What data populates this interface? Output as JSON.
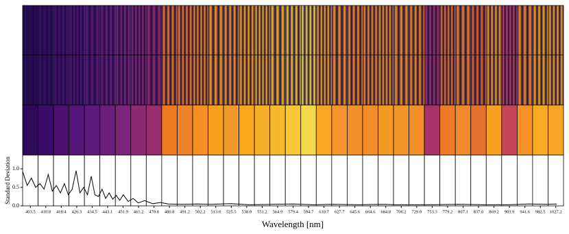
{
  "chart_data": {
    "type": "line",
    "xlabel": "Wavelength [nm]",
    "ylabel": "Standard Deviation",
    "categories": [
      "403.5",
      "410.8",
      "418.4",
      "426.3",
      "434.5",
      "443.1",
      "451.9",
      "461.2",
      "470.8",
      "480.8",
      "491.2",
      "502.2",
      "513.6",
      "525.5",
      "538.0",
      "551.2",
      "564.9",
      "579.4",
      "594.7",
      "610.7",
      "627.7",
      "645.6",
      "664.6",
      "684.8",
      "706.2",
      "729.0",
      "753.3",
      "779.2",
      "807.1",
      "837.0",
      "869.2",
      "903.9",
      "941.6",
      "982.5",
      "1027.2"
    ],
    "band_colors": [
      "#2e0a5c",
      "#3a0d68",
      "#4a1170",
      "#531676",
      "#5e1a7a",
      "#6b1f7c",
      "#7d257b",
      "#8c2a74",
      "#972d6c",
      "#f07a22",
      "#f2822a",
      "#f59024",
      "#f7a020",
      "#f49a2a",
      "#f9a81e",
      "#f5b027",
      "#f4b92e",
      "#f8c737",
      "#f4d84a",
      "#f8a724",
      "#f4962a",
      "#f4902a",
      "#f28d2a",
      "#f49b24",
      "#f29428",
      "#f18f28",
      "#a7356a",
      "#ef7a26",
      "#f08a2a",
      "#e46f2e",
      "#f7a022",
      "#c4465a",
      "#f59126",
      "#f7ab20",
      "#f5a424"
    ],
    "series": [
      {
        "color": "#000000",
        "x": [
          398,
          400,
          402,
          404,
          406,
          408,
          410,
          412,
          414,
          416,
          418,
          420,
          422,
          424,
          426,
          428,
          430,
          432,
          434,
          436,
          438,
          440,
          442,
          444,
          446,
          448,
          450,
          452,
          455,
          458,
          461,
          465,
          470,
          475,
          480,
          490,
          500,
          510,
          525,
          540,
          560,
          580,
          600,
          620,
          650,
          680,
          700,
          750,
          800,
          850,
          900,
          950,
          1000,
          1030
        ],
        "values": [
          0.65,
          0.9,
          0.55,
          0.75,
          0.5,
          0.6,
          0.45,
          0.85,
          0.4,
          0.55,
          0.35,
          0.6,
          0.3,
          0.45,
          0.95,
          0.35,
          0.5,
          0.3,
          0.8,
          0.3,
          0.25,
          0.45,
          0.2,
          0.35,
          0.18,
          0.28,
          0.15,
          0.3,
          0.12,
          0.2,
          0.08,
          0.14,
          0.06,
          0.09,
          0.05,
          0.04,
          0.05,
          0.04,
          0.06,
          0.03,
          0.04,
          0.05,
          0.03,
          0.04,
          0.03,
          0.04,
          0.03,
          0.03,
          0.04,
          0.03,
          0.03,
          0.05,
          0.04,
          0.05
        ]
      }
    ],
    "ylim": [
      0,
      1.37
    ],
    "yticks": [
      {
        "value": 0,
        "label": "0.0"
      },
      {
        "value": 0.5,
        "label": "0.5"
      },
      {
        "value": 1,
        "label": "1.0"
      }
    ]
  }
}
